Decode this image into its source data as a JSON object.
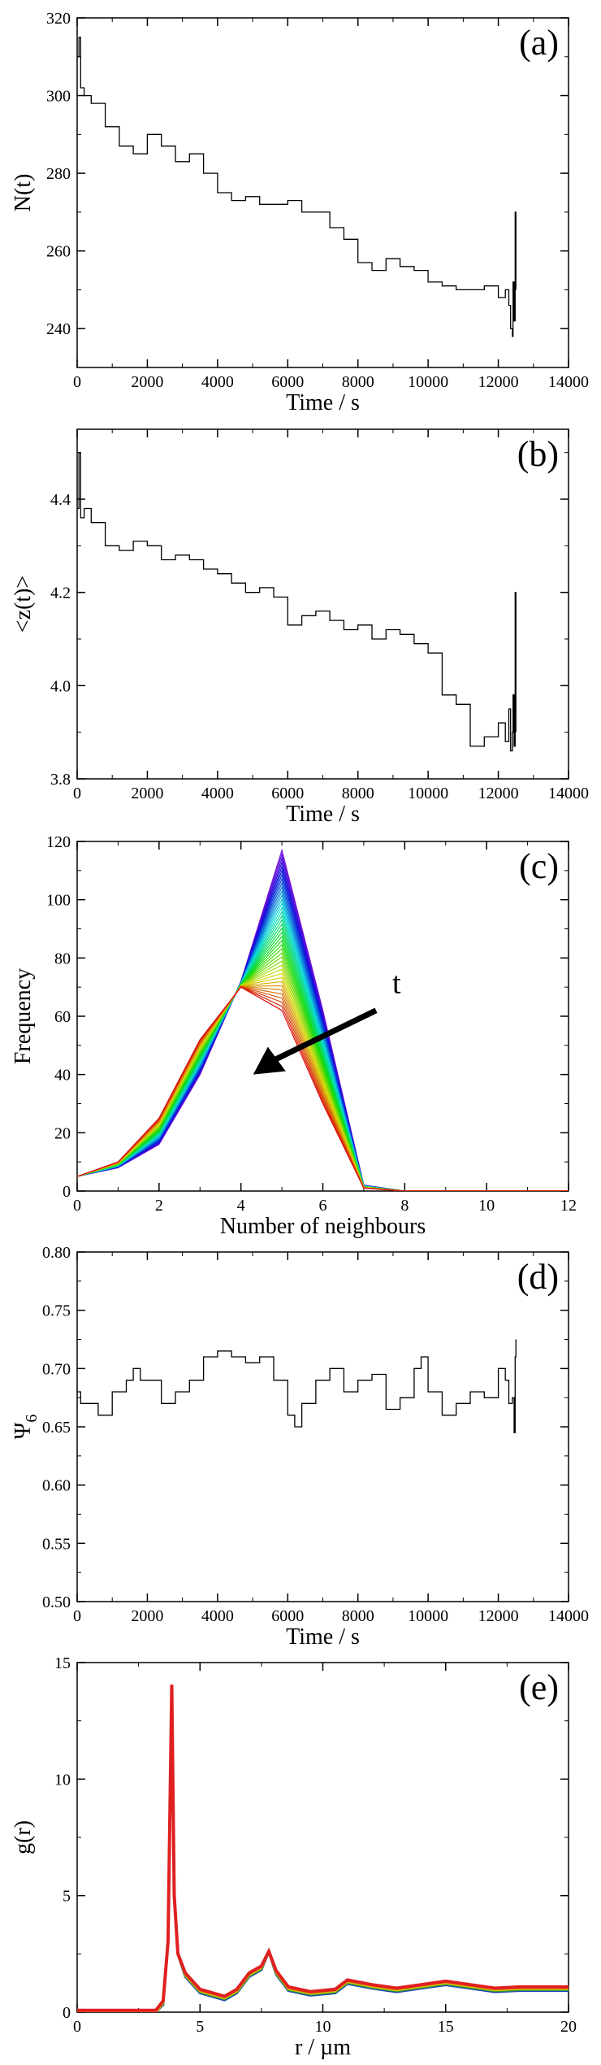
{
  "colors": {
    "axis": "#000000",
    "line": "#000000",
    "background": "#ffffff"
  },
  "chart_data": [
    {
      "panel": "a",
      "type": "line",
      "label": "(a)",
      "xlabel": "Time / s",
      "ylabel": "N(t)",
      "xlim": [
        0,
        14000
      ],
      "ylim": [
        230,
        320
      ],
      "xticks": [
        0,
        2000,
        4000,
        6000,
        8000,
        10000,
        12000,
        14000
      ],
      "yticks": [
        240,
        260,
        280,
        300,
        320
      ],
      "series": [
        {
          "name": "N(t)",
          "x": [
            0,
            50,
            100,
            200,
            400,
            800,
            1200,
            1600,
            2000,
            2400,
            2800,
            3200,
            3600,
            4000,
            4400,
            4800,
            5200,
            5600,
            6000,
            6400,
            6800,
            7200,
            7600,
            8000,
            8400,
            8800,
            9200,
            9600,
            10000,
            10400,
            10800,
            11200,
            11600,
            12000,
            12200,
            12300,
            12350,
            12400,
            12420,
            12450,
            12480,
            12500
          ],
          "y": [
            310,
            315,
            302,
            300,
            298,
            292,
            287,
            285,
            290,
            287,
            283,
            285,
            280,
            275,
            273,
            274,
            272,
            272,
            273,
            270,
            270,
            266,
            263,
            257,
            255,
            258,
            256,
            255,
            252,
            251,
            250,
            250,
            251,
            248,
            250,
            246,
            240,
            238,
            252,
            242,
            270,
            250
          ]
        }
      ]
    },
    {
      "panel": "b",
      "type": "line",
      "label": "(b)",
      "xlabel": "Time / s",
      "ylabel": "<z(t)>",
      "xlim": [
        0,
        14000
      ],
      "ylim": [
        3.8,
        4.55
      ],
      "xticks": [
        0,
        2000,
        4000,
        6000,
        8000,
        10000,
        12000,
        14000
      ],
      "yticks": [
        3.8,
        4.0,
        4.2,
        4.4
      ],
      "series": [
        {
          "name": "<z(t)>",
          "x": [
            0,
            50,
            100,
            200,
            400,
            800,
            1200,
            1600,
            2000,
            2400,
            2800,
            3200,
            3600,
            4000,
            4400,
            4800,
            5200,
            5600,
            6000,
            6400,
            6800,
            7200,
            7600,
            8000,
            8400,
            8800,
            9200,
            9600,
            10000,
            10400,
            10800,
            11200,
            11600,
            12000,
            12200,
            12300,
            12350,
            12400,
            12420,
            12450,
            12480,
            12500
          ],
          "y": [
            4.38,
            4.5,
            4.36,
            4.38,
            4.35,
            4.3,
            4.29,
            4.31,
            4.3,
            4.27,
            4.28,
            4.27,
            4.25,
            4.24,
            4.22,
            4.2,
            4.21,
            4.19,
            4.13,
            4.15,
            4.16,
            4.14,
            4.12,
            4.13,
            4.1,
            4.12,
            4.11,
            4.09,
            4.07,
            3.98,
            3.96,
            3.87,
            3.89,
            3.92,
            3.88,
            3.95,
            3.86,
            3.9,
            3.98,
            3.87,
            4.2,
            3.9
          ]
        }
      ]
    },
    {
      "panel": "c",
      "type": "line",
      "label": "(c)",
      "xlabel": "Number of neighbours",
      "ylabel": "Frequency",
      "xlim": [
        0,
        12
      ],
      "ylim": [
        0,
        120
      ],
      "xticks": [
        0,
        2,
        4,
        6,
        8,
        10,
        12
      ],
      "yticks": [
        0,
        20,
        40,
        60,
        80,
        100,
        120
      ],
      "annotation": "t",
      "series_count": 40,
      "series_start": {
        "name": "t start",
        "x": [
          0,
          1,
          2,
          3,
          4,
          5,
          6,
          7,
          8,
          9,
          10,
          11,
          12
        ],
        "y": [
          5,
          8,
          16,
          40,
          72,
          117,
          62,
          2,
          0,
          0,
          0,
          0,
          0
        ]
      },
      "series_end": {
        "name": "t end",
        "x": [
          0,
          1,
          2,
          3,
          4,
          5,
          6,
          7,
          8,
          9,
          10,
          11,
          12
        ],
        "y": [
          5,
          10,
          25,
          52,
          70,
          62,
          30,
          1,
          0,
          0,
          0,
          0,
          0
        ]
      }
    },
    {
      "panel": "d",
      "type": "line",
      "label": "(d)",
      "xlabel": "Time / s",
      "ylabel": "Ψ",
      "ylabel_sub": "6",
      "xlim": [
        0,
        14000
      ],
      "ylim": [
        0.5,
        0.8
      ],
      "xticks": [
        0,
        2000,
        4000,
        6000,
        8000,
        10000,
        12000,
        14000
      ],
      "yticks": [
        0.5,
        0.55,
        0.6,
        0.65,
        0.7,
        0.75,
        0.8
      ],
      "series": [
        {
          "name": "psi6",
          "x": [
            0,
            100,
            200,
            600,
            1000,
            1400,
            1600,
            1800,
            2400,
            2800,
            3200,
            3600,
            4000,
            4400,
            4800,
            5200,
            5600,
            6000,
            6200,
            6400,
            6800,
            7200,
            7600,
            8000,
            8400,
            8800,
            9200,
            9600,
            9800,
            10000,
            10400,
            10800,
            11200,
            11600,
            12000,
            12200,
            12300,
            12400,
            12450,
            12480,
            12500
          ],
          "y": [
            0.68,
            0.67,
            0.67,
            0.66,
            0.68,
            0.69,
            0.7,
            0.69,
            0.67,
            0.68,
            0.69,
            0.71,
            0.715,
            0.71,
            0.705,
            0.71,
            0.69,
            0.66,
            0.65,
            0.67,
            0.69,
            0.7,
            0.68,
            0.69,
            0.695,
            0.665,
            0.675,
            0.7,
            0.71,
            0.68,
            0.66,
            0.67,
            0.68,
            0.675,
            0.7,
            0.69,
            0.67,
            0.675,
            0.645,
            0.71,
            0.725
          ]
        }
      ]
    },
    {
      "panel": "e",
      "type": "line",
      "label": "(e)",
      "xlabel": "r / µm",
      "ylabel": "g(r)",
      "xlim": [
        0,
        20
      ],
      "ylim": [
        0,
        15
      ],
      "xticks": [
        0,
        5,
        10,
        15,
        20
      ],
      "yticks": [
        0,
        5,
        10,
        15
      ],
      "series": [
        {
          "name": "g(r)",
          "x": [
            0,
            3.2,
            3.5,
            3.7,
            3.85,
            3.95,
            4.1,
            4.4,
            5,
            6,
            6.5,
            7,
            7.5,
            7.8,
            8.1,
            8.6,
            9.5,
            10.5,
            11,
            12,
            13,
            14,
            15,
            16,
            17,
            18,
            19,
            20
          ],
          "y": [
            0,
            0,
            0.4,
            3,
            14,
            5,
            2.5,
            1.6,
            0.9,
            0.6,
            0.9,
            1.6,
            1.9,
            2.6,
            1.7,
            1,
            0.8,
            0.9,
            1.3,
            1.1,
            0.95,
            1.1,
            1.25,
            1.1,
            0.95,
            1,
            1,
            1
          ]
        }
      ]
    }
  ]
}
